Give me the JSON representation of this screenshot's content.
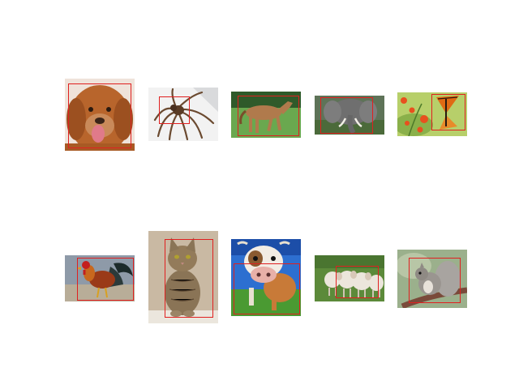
{
  "figure": {
    "background": "#ffffff",
    "box_color": "#e02020"
  },
  "images": [
    {
      "subject": "dog",
      "icon": "dog-photo",
      "bg": "#efe3da"
    },
    {
      "subject": "spider",
      "icon": "spider-photo",
      "bg": "#f2f2f2"
    },
    {
      "subject": "horse",
      "icon": "horse-photo",
      "bg": "#4d8a3e"
    },
    {
      "subject": "elephant",
      "icon": "elephant-photo",
      "bg": "#5e7358"
    },
    {
      "subject": "butterfly",
      "icon": "butterfly-photo",
      "bg": "#b7cf6a"
    },
    {
      "subject": "rooster",
      "icon": "rooster-photo",
      "bg": "#8e9aa8"
    },
    {
      "subject": "cat",
      "icon": "cat-photo",
      "bg": "#c9b9a3"
    },
    {
      "subject": "cow",
      "icon": "cow-photo",
      "bg": "#2d6fd0"
    },
    {
      "subject": "sheep",
      "icon": "sheep-photo",
      "bg": "#5c8a3a"
    },
    {
      "subject": "squirrel",
      "icon": "squirrel-photo",
      "bg": "#9bb08c"
    }
  ]
}
